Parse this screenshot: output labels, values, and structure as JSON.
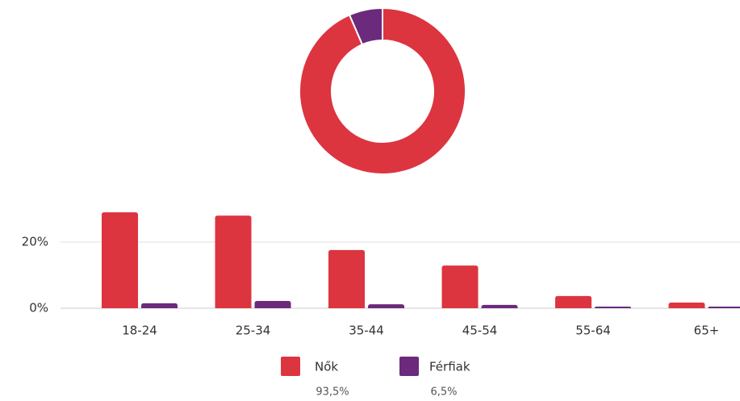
{
  "chart_data": [
    {
      "type": "pie",
      "labels": [
        "Nők",
        "Férfiak"
      ],
      "values": [
        93.5,
        6.5
      ],
      "value_labels": [
        "93,5%",
        "6,5%"
      ],
      "colors": [
        "#dc3540",
        "#6b2a7b"
      ]
    },
    {
      "type": "bar",
      "categories": [
        "18-24",
        "25-34",
        "35-44",
        "45-54",
        "55-64",
        "65+"
      ],
      "series": [
        {
          "color": "#dc3540",
          "values": [
            29,
            28,
            17.6,
            12.9,
            3.7,
            1.7
          ]
        },
        {
          "color": "#6b2a7b",
          "values": [
            1.5,
            2.2,
            1.2,
            1,
            0.5,
            0.5
          ]
        }
      ],
      "ylim": [
        0,
        30
      ],
      "yticks": [
        {
          "value": 0,
          "label": "0%"
        },
        {
          "value": 20,
          "label": "20%"
        }
      ],
      "grid": true
    }
  ]
}
